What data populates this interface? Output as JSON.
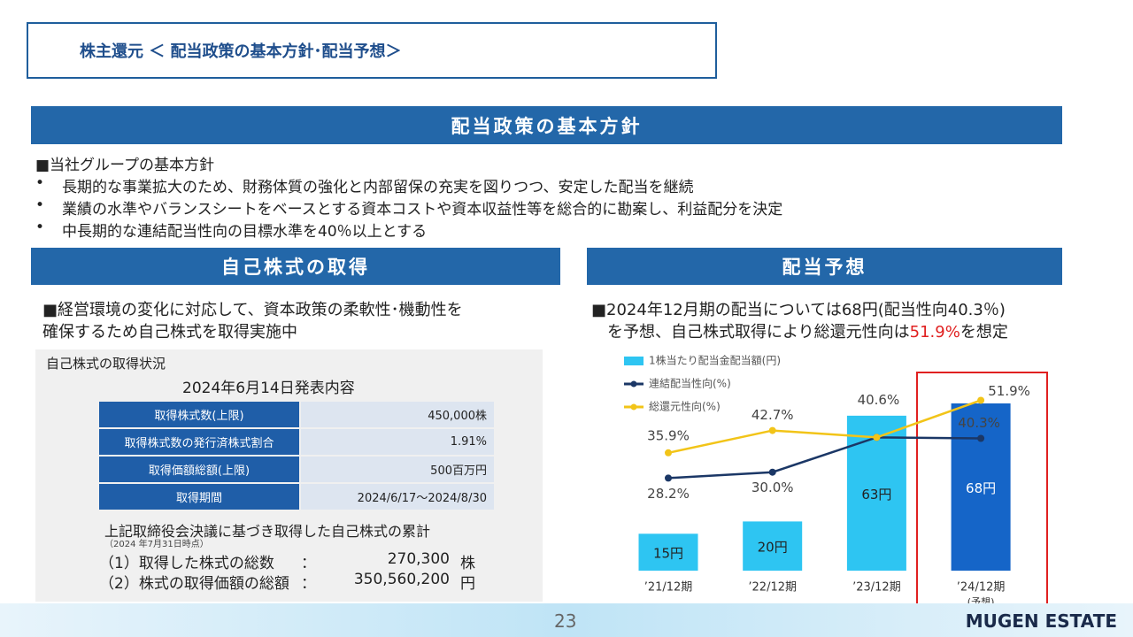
{
  "header": {
    "title": "株主還元 ＜ 配当政策の基本方針･配当予想＞"
  },
  "policy": {
    "heading": "配当政策の基本方針",
    "intro": "■当社グループの基本方針",
    "bullets": [
      "長期的な事業拡大のため、財務体質の強化と内部留保の充実を図りつつ、安定した配当を継続",
      "業績の水準やバランスシートをベースとする資本コストや資本収益性等を総合的に勘案し、利益配分を決定",
      "中長期的な連結配当性向の目標水準を40％以上とする"
    ]
  },
  "buyback": {
    "heading": "自己株式の取得",
    "lead": [
      "■経営環境の変化に対応して、資本政策の柔軟性･機動性を",
      "確保するため自己株式を取得実施中"
    ],
    "status_title": "自己株式の取得状況",
    "announcement": "2024年6月14日発表内容",
    "table": {
      "rows": [
        [
          "取得株式数(上限)",
          "450,000株"
        ],
        [
          "取得株式数の発行済株式割合",
          "1.91%"
        ],
        [
          "取得価額総額(上限)",
          "500百万円"
        ],
        [
          "取得期間",
          "2024/6/17～2024/8/30"
        ]
      ]
    },
    "cumulative_title": "上記取締役会決議に基づき取得した自己株式の累計",
    "as_of": "（2024 年7月31日時点）",
    "items": [
      {
        "label": "（1）取得した株式の総数",
        "colon": "：",
        "value": "270,300",
        "unit": "株"
      },
      {
        "label": "（2）株式の取得価額の総額",
        "colon": "：",
        "value": "350,560,200",
        "unit": "円"
      }
    ]
  },
  "forecast": {
    "heading": "配当予想",
    "lead_line1": "■2024年12月期の配当については68円(配当性向40.3％)",
    "lead_line2": [
      "を予想、自己株式取得により総還元性向は",
      "51.9%",
      "を想定"
    ],
    "highlight_color": "#e02020"
  },
  "chart_data": {
    "type": "combo",
    "categories": [
      "’21/12期",
      "’22/12期",
      "’23/12期",
      "’24/12期"
    ],
    "forecast_note": "(予想)",
    "series": [
      {
        "name": "1株当たり配当金配当額(円)",
        "kind": "bar",
        "color": "#2ec5f2",
        "colors": [
          "#2ec5f2",
          "#2ec5f2",
          "#2ec5f2",
          "#1565c8"
        ],
        "values": [
          15,
          20,
          63,
          68
        ],
        "value_labels": [
          "15円",
          "20円",
          "63円",
          "68円"
        ]
      },
      {
        "name": "連結配当性向(%)",
        "kind": "line",
        "axis": "y2",
        "color": "#1b3766",
        "values": [
          28.2,
          30.0,
          40.6,
          40.3
        ],
        "value_labels": [
          "28.2%",
          "30.0%",
          "40.6%",
          "40.3%"
        ]
      },
      {
        "name": "総還元性向(%)",
        "kind": "line",
        "axis": "y2",
        "color": "#f2c418",
        "values": [
          35.9,
          42.7,
          40.6,
          51.9
        ],
        "value_labels": [
          "35.9%",
          "42.7%",
          null,
          "51.9%"
        ]
      }
    ]
  },
  "footer": {
    "page": "23",
    "logo": "MUGEN ESTATE"
  }
}
